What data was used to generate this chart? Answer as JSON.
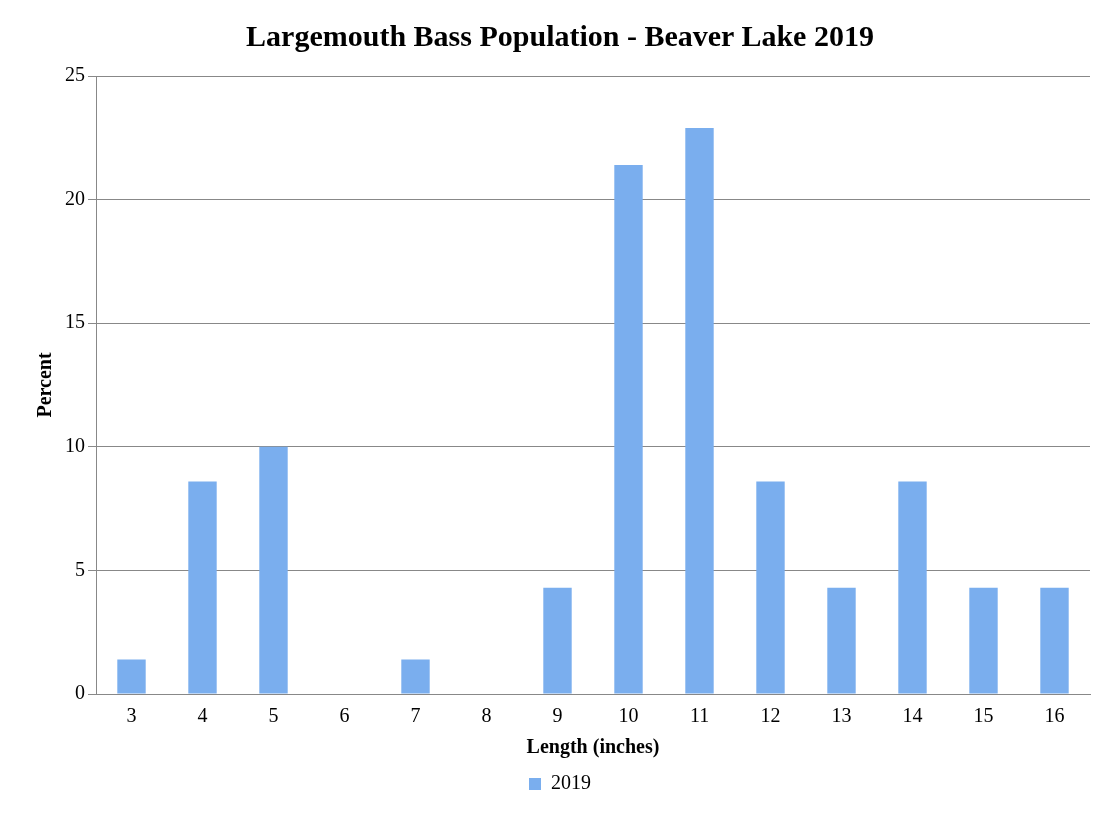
{
  "chart_data": {
    "type": "bar",
    "title": "Largemouth Bass Population - Beaver Lake 2019",
    "xlabel": "Length (inches)",
    "ylabel": "Percent",
    "categories": [
      "3",
      "4",
      "5",
      "6",
      "7",
      "8",
      "9",
      "10",
      "11",
      "12",
      "13",
      "14",
      "15",
      "16"
    ],
    "series": [
      {
        "name": "2019",
        "color": "#7aaeee",
        "values": [
          1.4,
          8.6,
          10,
          0,
          1.4,
          0,
          4.3,
          21.4,
          22.9,
          8.6,
          4.3,
          8.6,
          4.3,
          4.3
        ]
      }
    ],
    "ylim": [
      0,
      25
    ],
    "yticks": [
      0,
      5,
      10,
      15,
      20,
      25
    ],
    "grid": "y",
    "legend": "bottom"
  }
}
